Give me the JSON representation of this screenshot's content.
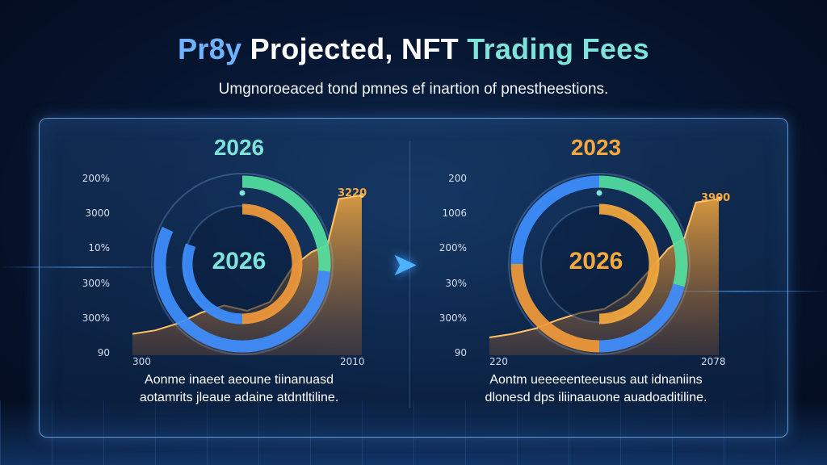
{
  "title": {
    "part1": "Pr8y",
    "part2": "Projected, NFT",
    "part3": "Trading Fees"
  },
  "subtitle": "Umgnoroeaced tond pmnes ef inartion of pnestheestions.",
  "colors": {
    "background": "#071733",
    "panel_border": "#78beff",
    "teal": "#7ee3d8",
    "blue": "#3f8fff",
    "orange": "#f29a3a",
    "green": "#52e0a0",
    "gold": "#f5a93c"
  },
  "arrow_icon": "arrow-right-icon",
  "chart_data": [
    {
      "type": "area",
      "year_label": "2026",
      "center_label": "2026",
      "y_ticks": [
        "200%",
        "3000",
        "10%",
        "300%",
        "300%",
        "90"
      ],
      "x_ticks": [
        "300",
        "2010"
      ],
      "peak_label": "3220",
      "x": [
        0,
        0.1,
        0.2,
        0.3,
        0.4,
        0.5,
        0.6,
        0.7,
        0.78,
        0.85,
        0.9,
        1.0
      ],
      "values": [
        12,
        14,
        18,
        24,
        28,
        25,
        30,
        50,
        58,
        62,
        88,
        90
      ],
      "rings": [
        {
          "name": "outer",
          "color": "#52e0a0",
          "start_deg": 0,
          "sweep_deg": 95
        },
        {
          "name": "outer-blue",
          "color": "#3f8fff",
          "start_deg": 95,
          "sweep_deg": 200
        },
        {
          "name": "inner-orange",
          "color": "#f29a3a",
          "start_deg": 0,
          "sweep_deg": 180
        },
        {
          "name": "inner-blue",
          "color": "#3f8fff",
          "start_deg": 180,
          "sweep_deg": 110
        }
      ],
      "caption": [
        "Aonme inaeet aeoune tiinanuasd",
        "aotamrits jleaue adaine atdntltiline."
      ]
    },
    {
      "type": "area",
      "year_label": "2023",
      "center_label": "2026",
      "y_ticks": [
        "200",
        "1006",
        "200%",
        "30%",
        "300%",
        "90"
      ],
      "x_ticks": [
        "220",
        "2078"
      ],
      "peak_label": "3900",
      "x": [
        0,
        0.1,
        0.2,
        0.3,
        0.4,
        0.5,
        0.6,
        0.7,
        0.78,
        0.85,
        0.9,
        1.0
      ],
      "values": [
        10,
        12,
        15,
        20,
        24,
        26,
        34,
        48,
        60,
        66,
        86,
        88
      ],
      "rings": [
        {
          "name": "outer-green",
          "color": "#52e0a0",
          "start_deg": 0,
          "sweep_deg": 105
        },
        {
          "name": "outer-blue",
          "color": "#3f8fff",
          "start_deg": 105,
          "sweep_deg": 75
        },
        {
          "name": "outer-orange",
          "color": "#f29a3a",
          "start_deg": 180,
          "sweep_deg": 90
        },
        {
          "name": "outer-blue-2",
          "color": "#3f8fff",
          "start_deg": 270,
          "sweep_deg": 90
        },
        {
          "name": "inner-gold",
          "color": "#f5a93c",
          "start_deg": 0,
          "sweep_deg": 180
        }
      ],
      "caption": [
        "Aontm ueeeeenteeusus aut idnaniins",
        "dlonesd dps iliinaauone auadoaditiline."
      ]
    }
  ]
}
